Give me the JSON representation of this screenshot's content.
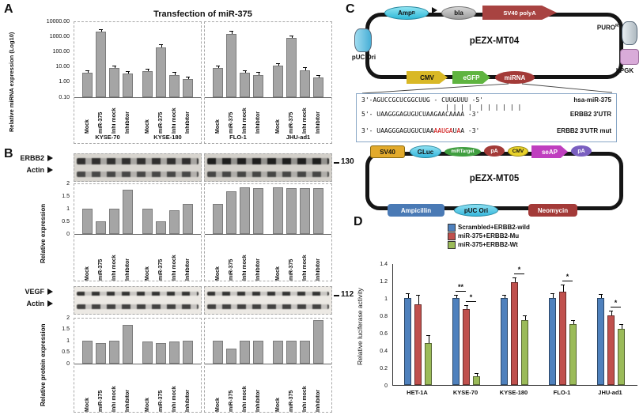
{
  "figure": {
    "panel_labels": {
      "a": "A",
      "b": "B",
      "c": "C",
      "d": "D"
    }
  },
  "panel_a": {
    "title": "Transfection of miR-375",
    "ylabel": "Relative miRNA expression (Log10)",
    "ytick_labels": [
      "10000.00",
      "1000.00",
      "100.00",
      "10.00",
      "1.00",
      "0.10"
    ]
  },
  "panel_b": {
    "blot1_row1": "ERBB2",
    "blot1_row2": "Actin",
    "blot1_marker": "130",
    "chart1_ylabel": "Relative expression",
    "chart1_yticks": [
      "2",
      "1.5",
      "1",
      "0.5",
      "0"
    ],
    "blot2_row1": "VEGF",
    "blot2_row2": "Actin",
    "blot2_marker": "112",
    "chart2_ylabel": "Relative protein expression",
    "chart2_yticks": [
      "2",
      "1.5",
      "1",
      "0.5",
      "0"
    ]
  },
  "panel_c": {
    "plasmid1": {
      "name": "pEZX-MT04",
      "amp": "Amp",
      "amp_sup": "R",
      "bla": "bla",
      "sv40_polya": "SV40 polyA",
      "puro": "PURO",
      "puro_sup": "R",
      "puc_ori": "pUC Ori",
      "cmv": "CMV",
      "egfp": "eGFP",
      "mirna": "miRNA",
      "hpgk": "hPGK"
    },
    "alignment": {
      "mirna_seq": "3'-AGUCCGCUCGGCUUG - CUUGUUU -5'",
      "mirna_label": "hsa-miR-375",
      "pipes": "| | | |  | | | | | |",
      "utr_seq": "5'- UAAGGGAGUGUCUAAGAACAAAA -3'",
      "utr_label": "ERBB2 3'UTR",
      "mut_label": "ERBB2 3'UTR mut",
      "mut_segments": [
        {
          "text": "3'- UAAGGGAGUGUCUAA",
          "red": false
        },
        {
          "text": "AAUGA",
          "red": true
        },
        {
          "text": "U",
          "red": false
        },
        {
          "text": "A",
          "red": true
        },
        {
          "text": "A -3'",
          "red": false
        }
      ]
    },
    "plasmid2": {
      "name": "pEZX-MT05",
      "sv40": "SV40",
      "gluc": "GLuc",
      "mirtarget": "miRTarget",
      "pa1": "pA",
      "cmv": "CMV",
      "seap": "seAP",
      "pa2": "pA",
      "ampicillin": "Ampicillin",
      "puc_ori": "pUC Ori",
      "neomycin": "Neomycin"
    }
  },
  "panel_d": {
    "ylabel": "Relative luciferase activity",
    "ytick_labels": [
      "1.4",
      "1.2",
      "1",
      "0.8",
      "0.6",
      "0.4",
      "0.2",
      "0"
    ]
  },
  "chart_data": [
    {
      "id": "panelA",
      "type": "bar",
      "title": "Transfection of miR-375",
      "ylabel": "Relative miRNA expression (Log10)",
      "yscale": "log",
      "ylim": [
        0.1,
        10000
      ],
      "yticks": [
        10000,
        1000,
        100,
        10,
        1,
        0.1
      ],
      "groups": [
        "KYSE-70",
        "KYSE-180",
        "FLO-1",
        "JHU-ad1"
      ],
      "conditions": [
        "Mock",
        "miR-375",
        "Inhi mock",
        "Inhibitor"
      ],
      "values": [
        [
          4,
          2000,
          8,
          3.5
        ],
        [
          5,
          200,
          3,
          1.5
        ],
        [
          8,
          1500,
          4,
          3
        ],
        [
          12,
          800,
          6,
          2
        ]
      ],
      "errors": [
        [
          1.5,
          700,
          3,
          1.2
        ],
        [
          2,
          80,
          1,
          0.5
        ],
        [
          3,
          600,
          1.5,
          1
        ],
        [
          4,
          280,
          2,
          0.7
        ]
      ],
      "bar_color": "#a5a5a5",
      "grid": false
    },
    {
      "id": "panelB_erbb2",
      "type": "bar",
      "ylabel": "Relative expression",
      "ylim": [
        0,
        2
      ],
      "yticks": [
        2,
        1.5,
        1,
        0.5,
        0
      ],
      "groups": [
        "KYSE-70",
        "KYSE-180",
        "FLO-1",
        "JHU-ad1"
      ],
      "conditions": [
        "Mock",
        "miR-375",
        "Inhi mock",
        "Inhibitor"
      ],
      "values": [
        [
          1.0,
          0.5,
          1.0,
          1.75
        ],
        [
          1.0,
          0.5,
          0.95,
          1.2
        ],
        [
          1.2,
          1.7,
          1.85,
          1.8
        ],
        [
          1.85,
          1.8,
          1.8,
          1.8
        ]
      ],
      "bar_color": "#a5a5a5",
      "grid": false
    },
    {
      "id": "panelB_vegf",
      "type": "bar",
      "ylabel": "Relative protein expression",
      "ylim": [
        0,
        2
      ],
      "yticks": [
        2,
        1.5,
        1,
        0.5,
        0
      ],
      "groups": [
        "KYSE-70",
        "KYSE-180",
        "FLO-1",
        "JHU-ad1"
      ],
      "conditions": [
        "Mock",
        "miR-375",
        "Inhi mock",
        "Inhibitor"
      ],
      "values": [
        [
          1.0,
          0.9,
          1.0,
          1.7
        ],
        [
          0.95,
          0.9,
          0.95,
          1.0
        ],
        [
          1.0,
          0.65,
          1.0,
          1.0
        ],
        [
          1.0,
          1.0,
          1.0,
          1.9
        ]
      ],
      "bar_color": "#a5a5a5",
      "grid": false
    },
    {
      "id": "panelD",
      "type": "bar",
      "ylabel": "Relative luciferase activity",
      "ylim": [
        0,
        1.4
      ],
      "yticks": [
        0,
        0.2,
        0.4,
        0.6,
        0.8,
        1,
        1.2,
        1.4
      ],
      "categories": [
        "HET-1A",
        "KYSE-70",
        "KYSE-180",
        "FLO-1",
        "JHU-ad1"
      ],
      "series": [
        {
          "name": "Scrambled+ERBB2-wild",
          "color": "#4F81BD",
          "values": [
            1.0,
            1.0,
            1.0,
            1.0,
            1.0
          ],
          "errors": [
            0.05,
            0.03,
            0.03,
            0.05,
            0.04
          ]
        },
        {
          "name": "miR-375+ERBB2-Mu",
          "color": "#C0504D",
          "values": [
            0.93,
            0.87,
            1.18,
            1.07,
            0.8
          ],
          "errors": [
            0.1,
            0.04,
            0.05,
            0.08,
            0.05
          ]
        },
        {
          "name": "miR-375+ERBB2-Wt",
          "color": "#9BBB59",
          "values": [
            0.48,
            0.1,
            0.75,
            0.7,
            0.65
          ],
          "errors": [
            0.08,
            0.03,
            0.04,
            0.04,
            0.04
          ]
        }
      ],
      "significance": [
        {
          "category": "KYSE-70",
          "pair": [
            0,
            1
          ],
          "mark": "**"
        },
        {
          "category": "KYSE-70",
          "pair": [
            1,
            2
          ],
          "mark": "*"
        },
        {
          "category": "KYSE-180",
          "pair": [
            1,
            2
          ],
          "mark": "*"
        },
        {
          "category": "FLO-1",
          "pair": [
            1,
            2
          ],
          "mark": "*"
        },
        {
          "category": "JHU-ad1",
          "pair": [
            1,
            2
          ],
          "mark": "*"
        }
      ],
      "legend_position": "top",
      "grid": false
    }
  ]
}
